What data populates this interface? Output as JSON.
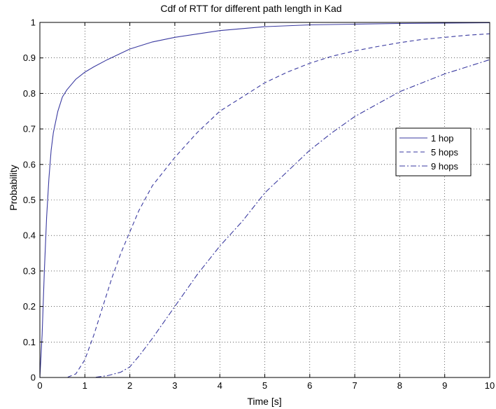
{
  "chart_data": {
    "type": "line",
    "title": "Cdf of RTT for different path length in Kad",
    "xlabel": "Time [s]",
    "ylabel": "Probability",
    "xlim": [
      0,
      10
    ],
    "ylim": [
      0,
      1
    ],
    "x_ticks": [
      "0",
      "1",
      "2",
      "3",
      "4",
      "5",
      "6",
      "7",
      "8",
      "9",
      "10"
    ],
    "y_ticks": [
      "0",
      "0.1",
      "0.2",
      "0.3",
      "0.4",
      "0.5",
      "0.6",
      "0.7",
      "0.8",
      "0.9",
      "1"
    ],
    "grid": true,
    "legend_position": "right",
    "series": [
      {
        "name": "1 hop",
        "line_style": "solid",
        "color": "#3a3aa0",
        "x": [
          0,
          0.05,
          0.1,
          0.15,
          0.2,
          0.25,
          0.3,
          0.35,
          0.4,
          0.5,
          0.6,
          0.7,
          0.8,
          0.9,
          1.0,
          1.2,
          1.5,
          2.0,
          2.5,
          3.0,
          4.0,
          5.0,
          6.0,
          7.0,
          8.0,
          9.0,
          10.0
        ],
        "y": [
          0,
          0.12,
          0.3,
          0.45,
          0.56,
          0.64,
          0.69,
          0.72,
          0.75,
          0.79,
          0.81,
          0.825,
          0.84,
          0.85,
          0.86,
          0.875,
          0.895,
          0.925,
          0.945,
          0.958,
          0.977,
          0.988,
          0.993,
          0.995,
          0.997,
          0.998,
          0.999
        ]
      },
      {
        "name": "5 hops",
        "line_style": "dashed",
        "color": "#3a3aa0",
        "x": [
          0,
          0.6,
          0.8,
          1.0,
          1.2,
          1.4,
          1.6,
          1.8,
          2.0,
          2.2,
          2.5,
          3.0,
          3.5,
          4.0,
          4.5,
          5.0,
          5.5,
          6.0,
          6.5,
          7.0,
          7.5,
          8.0,
          8.5,
          9.0,
          9.5,
          10.0
        ],
        "y": [
          0,
          0,
          0.01,
          0.05,
          0.12,
          0.2,
          0.28,
          0.35,
          0.41,
          0.47,
          0.54,
          0.62,
          0.69,
          0.75,
          0.79,
          0.83,
          0.86,
          0.885,
          0.905,
          0.92,
          0.932,
          0.943,
          0.952,
          0.958,
          0.964,
          0.968
        ]
      },
      {
        "name": "9 hops",
        "line_style": "dash-dot",
        "color": "#3a3aa0",
        "x": [
          0,
          1.2,
          1.5,
          1.8,
          2.0,
          2.2,
          2.5,
          3.0,
          3.5,
          4.0,
          4.5,
          5.0,
          5.5,
          6.0,
          6.5,
          7.0,
          7.5,
          8.0,
          8.5,
          9.0,
          9.5,
          10.0
        ],
        "y": [
          0,
          0,
          0.005,
          0.015,
          0.03,
          0.06,
          0.11,
          0.2,
          0.29,
          0.37,
          0.44,
          0.52,
          0.58,
          0.64,
          0.69,
          0.735,
          0.77,
          0.805,
          0.83,
          0.855,
          0.875,
          0.895
        ]
      }
    ]
  }
}
